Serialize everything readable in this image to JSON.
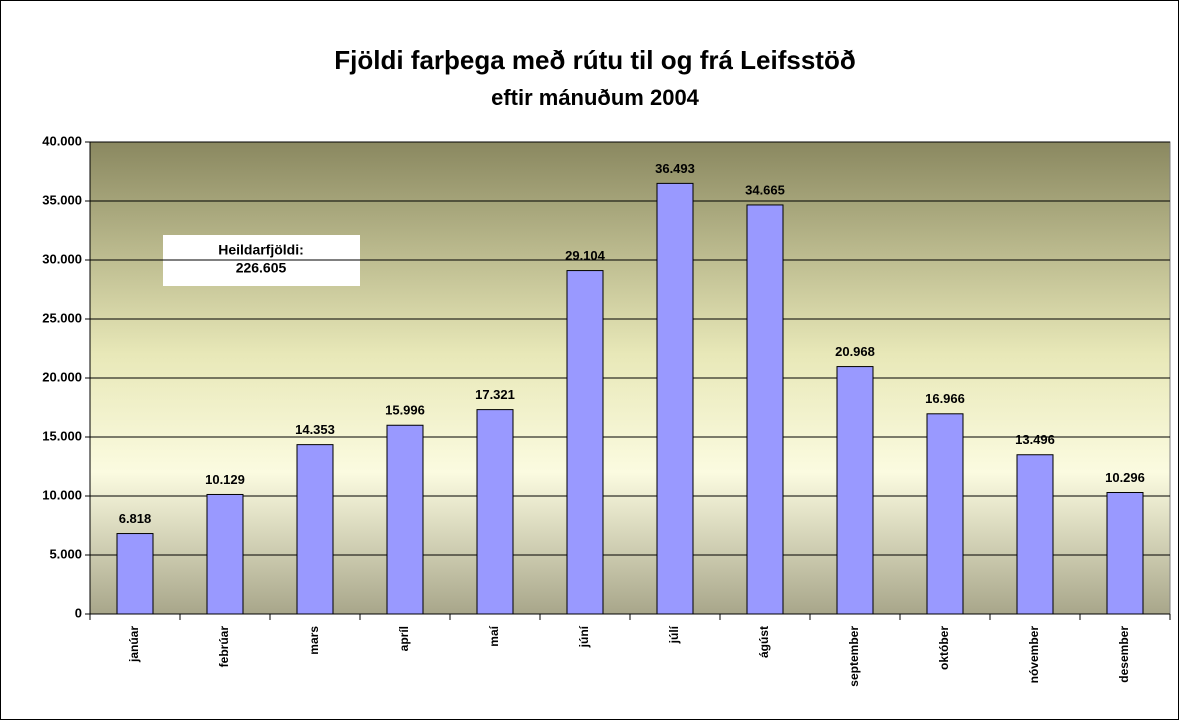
{
  "chart_data": {
    "type": "bar",
    "title": "Fjöldi farþega með rútu til og frá Leifsstöð",
    "subtitle": "eftir mánuðum 2004",
    "annotation": [
      "Heildarfjöldi:",
      "226.605"
    ],
    "categories": [
      "janúar",
      "febrúar",
      "mars",
      "apríl",
      "maí",
      "júní",
      "júlí",
      "ágúst",
      "september",
      "október",
      "nóvember",
      "desember"
    ],
    "values": [
      6818,
      10129,
      14353,
      15996,
      17321,
      29104,
      36493,
      34665,
      20968,
      16966,
      13496,
      10296
    ],
    "value_labels": [
      "6.818",
      "10.129",
      "14.353",
      "15.996",
      "17.321",
      "29.104",
      "36.493",
      "34.665",
      "20.968",
      "16.966",
      "13.496",
      "10.296"
    ],
    "color": "#9999ff",
    "ylim": [
      0,
      40000
    ],
    "yticks": [
      0,
      {
        "value": 5000,
        "label": "5.000"
      },
      {
        "value": 10000,
        "label": "10.000"
      },
      {
        "value": 15000,
        "label": "15.000"
      },
      {
        "value": 20000,
        "label": "20.000"
      },
      {
        "value": 25000,
        "label": "25.000"
      },
      {
        "value": 30000,
        "label": "30.000"
      },
      {
        "value": 35000,
        "label": "35.000"
      },
      {
        "value": 40000,
        "label": "40.000"
      }
    ],
    "grid": true
  }
}
